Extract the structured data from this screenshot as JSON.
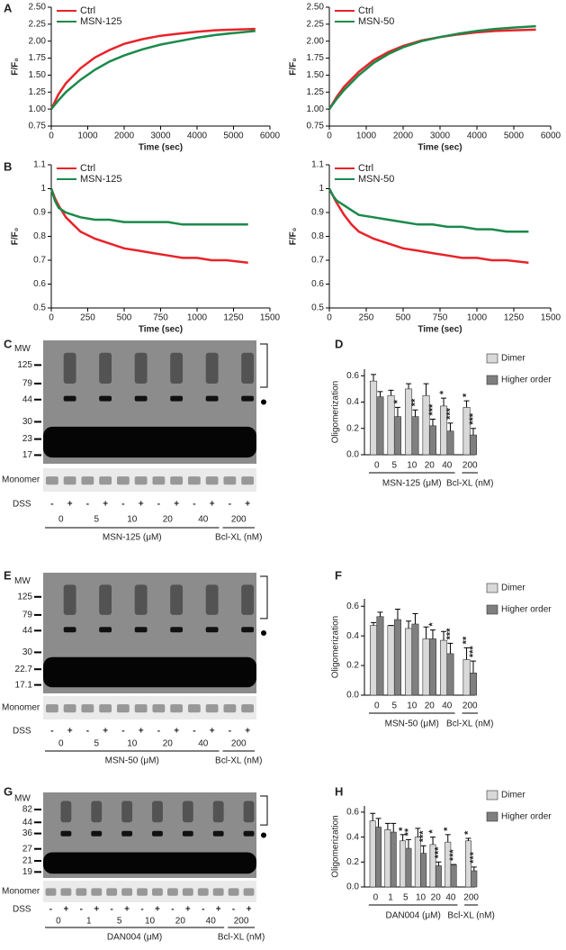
{
  "panel_labels": [
    "A",
    "B",
    "C",
    "D",
    "E",
    "F",
    "G",
    "H"
  ],
  "chart_data": [
    {
      "type": "line",
      "ylabel": "F/F₀",
      "xlabel": "Time (sec)",
      "x": [
        0,
        200,
        400,
        800,
        1200,
        1600,
        2000,
        2500,
        3000,
        3500,
        4000,
        4500,
        5000,
        5600
      ],
      "series": [
        {
          "name": "Ctrl",
          "color": "#e8232a",
          "values": [
            1.0,
            1.22,
            1.38,
            1.6,
            1.76,
            1.87,
            1.96,
            2.03,
            2.08,
            2.11,
            2.14,
            2.16,
            2.17,
            2.18
          ]
        },
        {
          "name": "MSN-125",
          "color": "#1a8a4a",
          "values": [
            1.0,
            1.13,
            1.25,
            1.43,
            1.58,
            1.7,
            1.79,
            1.88,
            1.95,
            2.0,
            2.05,
            2.09,
            2.12,
            2.15
          ]
        }
      ],
      "xlim": [
        0,
        6000
      ],
      "xticks": [
        0,
        1000,
        2000,
        3000,
        4000,
        5000,
        6000
      ],
      "ylim": [
        0.75,
        2.5
      ],
      "yticks": [
        0.75,
        {
          "value": 1,
          "label": "1.00"
        },
        1.25,
        {
          "value": 1.5,
          "label": "1.50"
        },
        1.75,
        {
          "value": 2,
          "label": "2.00"
        },
        2.25,
        {
          "value": 2.5,
          "label": "2.50"
        }
      ]
    },
    {
      "type": "line",
      "ylabel": "F/F₀",
      "xlabel": "Time (sec)",
      "x": [
        0,
        200,
        400,
        800,
        1200,
        1600,
        2000,
        2500,
        3000,
        3500,
        4000,
        4500,
        5000,
        5600
      ],
      "series": [
        {
          "name": "Ctrl",
          "color": "#e8232a",
          "values": [
            1.0,
            1.18,
            1.33,
            1.55,
            1.72,
            1.84,
            1.93,
            2.01,
            2.06,
            2.1,
            2.13,
            2.15,
            2.16,
            2.17
          ]
        },
        {
          "name": "MSN-50",
          "color": "#1a8a4a",
          "values": [
            1.0,
            1.15,
            1.28,
            1.5,
            1.68,
            1.81,
            1.91,
            2.0,
            2.06,
            2.11,
            2.15,
            2.18,
            2.2,
            2.22
          ]
        }
      ],
      "xlim": [
        0,
        6000
      ],
      "xticks": [
        0,
        1000,
        2000,
        3000,
        4000,
        5000,
        6000
      ],
      "ylim": [
        0.75,
        2.5
      ],
      "yticks": [
        0.75,
        {
          "value": 1,
          "label": "1.00"
        },
        1.25,
        {
          "value": 1.5,
          "label": "1.50"
        },
        1.75,
        {
          "value": 2,
          "label": "2.00"
        },
        2.25,
        {
          "value": 2.5,
          "label": "2.50"
        }
      ]
    },
    {
      "type": "line",
      "ylabel": "F/F₀",
      "xlabel": "Time (sec)",
      "x": [
        0,
        25,
        50,
        100,
        150,
        200,
        300,
        400,
        500,
        600,
        700,
        800,
        900,
        1000,
        1100,
        1200,
        1350
      ],
      "series": [
        {
          "name": "Ctrl",
          "color": "#e8232a",
          "values": [
            1.0,
            0.96,
            0.93,
            0.88,
            0.85,
            0.82,
            0.79,
            0.77,
            0.75,
            0.74,
            0.73,
            0.72,
            0.71,
            0.71,
            0.7,
            0.7,
            0.69
          ]
        },
        {
          "name": "MSN-125",
          "color": "#1a8a4a",
          "values": [
            1.0,
            0.95,
            0.92,
            0.9,
            0.89,
            0.88,
            0.87,
            0.87,
            0.86,
            0.86,
            0.86,
            0.86,
            0.85,
            0.85,
            0.85,
            0.85,
            0.85
          ]
        }
      ],
      "xlim": [
        0,
        1500
      ],
      "xticks": [
        0,
        250,
        500,
        750,
        1000,
        1250,
        1500
      ],
      "ylim": [
        0.5,
        1.1
      ],
      "yticks": [
        0.5,
        0.6,
        0.7,
        0.8,
        0.9,
        1,
        1.1
      ]
    },
    {
      "type": "line",
      "ylabel": "F/F₀",
      "xlabel": "Time (sec)",
      "x": [
        0,
        25,
        50,
        100,
        150,
        200,
        300,
        400,
        500,
        600,
        700,
        800,
        900,
        1000,
        1100,
        1200,
        1350
      ],
      "series": [
        {
          "name": "Ctrl",
          "color": "#e8232a",
          "values": [
            1.0,
            0.97,
            0.94,
            0.89,
            0.85,
            0.82,
            0.79,
            0.77,
            0.75,
            0.74,
            0.73,
            0.72,
            0.71,
            0.71,
            0.7,
            0.7,
            0.69
          ]
        },
        {
          "name": "MSN-50",
          "color": "#1a8a4a",
          "values": [
            1.0,
            0.97,
            0.95,
            0.93,
            0.91,
            0.89,
            0.88,
            0.87,
            0.86,
            0.85,
            0.85,
            0.84,
            0.84,
            0.83,
            0.83,
            0.82,
            0.82
          ]
        }
      ],
      "xlim": [
        0,
        1500
      ],
      "xticks": [
        0,
        250,
        500,
        750,
        1000,
        1250,
        1500
      ],
      "ylim": [
        0.5,
        1.1
      ],
      "yticks": [
        0.5,
        0.6,
        0.7,
        0.8,
        0.9,
        1,
        1.1
      ]
    },
    {
      "type": "bar",
      "ylabel": "Oligomerization",
      "categories": [
        "0",
        "5",
        "10",
        "20",
        "40",
        "200"
      ],
      "groups": [
        {
          "label": "MSN-125 (μM)",
          "span": 5
        },
        {
          "label": "Bcl-XL (nM)",
          "span": 1
        }
      ],
      "series": [
        {
          "name": "Dimer",
          "color": "#d9d9d9",
          "values": [
            0.56,
            0.45,
            0.5,
            0.45,
            0.37,
            0.36
          ],
          "errors": [
            0.05,
            0.04,
            0.04,
            0.09,
            0.06,
            0.05
          ],
          "significance": [
            null,
            null,
            null,
            null,
            "*",
            "*"
          ]
        },
        {
          "name": "Higher order",
          "color": "#7f7f7f",
          "values": [
            0.44,
            0.29,
            0.29,
            0.22,
            0.18,
            0.15
          ],
          "errors": [
            0.04,
            0.07,
            0.05,
            0.05,
            0.06,
            0.05
          ],
          "significance": [
            null,
            "*",
            "**",
            "***",
            "***",
            "***"
          ]
        }
      ],
      "ylim": [
        0,
        0.65
      ],
      "yticks": [
        {
          "value": 0,
          "label": "0.0"
        },
        0.2,
        0.4,
        0.6
      ]
    },
    {
      "type": "bar",
      "ylabel": "Oligomerization",
      "categories": [
        "0",
        "5",
        "10",
        "20",
        "40",
        "200"
      ],
      "groups": [
        {
          "label": "MSN-50 (μM)",
          "span": 5
        },
        {
          "label": "Bcl-XL (nM)",
          "span": 1
        }
      ],
      "series": [
        {
          "name": "Dimer",
          "color": "#d9d9d9",
          "values": [
            0.47,
            0.47,
            0.45,
            0.38,
            0.37,
            0.24
          ],
          "errors": [
            0.02,
            0.0,
            0.05,
            0.08,
            0.06,
            0.08
          ],
          "significance": [
            null,
            null,
            null,
            null,
            null,
            "**"
          ]
        },
        {
          "name": "Higher order",
          "color": "#7f7f7f",
          "values": [
            0.53,
            0.51,
            0.48,
            0.38,
            0.28,
            0.15
          ],
          "errors": [
            0.03,
            0.07,
            0.07,
            0.06,
            0.07,
            0.08
          ],
          "significance": [
            null,
            null,
            null,
            "*",
            "***",
            "***"
          ]
        }
      ],
      "ylim": [
        0,
        0.65
      ],
      "yticks": [
        {
          "value": 0,
          "label": "0.0"
        },
        0.2,
        0.4,
        0.6
      ]
    },
    {
      "type": "bar",
      "ylabel": "Oligomerization",
      "categories": [
        "0",
        "1",
        "5",
        "10",
        "20",
        "40",
        "200"
      ],
      "groups": [
        {
          "label": "DAN004 (μM)",
          "span": 6
        },
        {
          "label": "Bcl-XL (nM)",
          "span": 1
        }
      ],
      "series": [
        {
          "name": "Dimer",
          "color": "#d9d9d9",
          "values": [
            0.53,
            0.46,
            0.37,
            0.4,
            0.34,
            0.36,
            0.37
          ],
          "errors": [
            0.06,
            0.05,
            0.05,
            0.07,
            0.06,
            0.06,
            0.02
          ],
          "significance": [
            null,
            null,
            "*",
            null,
            "*",
            "*",
            "*"
          ]
        },
        {
          "name": "Higher order",
          "color": "#7f7f7f",
          "values": [
            0.48,
            0.44,
            0.31,
            0.27,
            0.17,
            0.18,
            0.13
          ],
          "errors": [
            0.07,
            0.07,
            0.07,
            0.06,
            0.03,
            0.0,
            0.03
          ],
          "significance": [
            null,
            null,
            "**",
            "***",
            "***",
            "***",
            "***"
          ]
        }
      ],
      "ylim": [
        0,
        0.65
      ],
      "yticks": [
        {
          "value": 0,
          "label": "0.0"
        },
        0.2,
        0.4,
        0.6
      ]
    }
  ],
  "blots": [
    {
      "mw": [
        "MW",
        "125",
        "79",
        "44",
        "30",
        "23",
        "17"
      ],
      "monomer": "Monomer",
      "dss": "DSS",
      "signs": [
        "-",
        "+",
        "-",
        "+",
        "-",
        "+",
        "-",
        "+",
        "-",
        "+",
        "-",
        "+"
      ],
      "concentrations": [
        "0",
        "5",
        "10",
        "20",
        "40",
        "200"
      ],
      "groups": [
        {
          "label": "MSN-125 (μM)",
          "span": 5
        },
        {
          "label": "Bcl-XL (nM)",
          "span": 1
        }
      ]
    },
    {
      "mw": [
        "MW",
        "125",
        "79",
        "44",
        "30",
        "22.7",
        "17.1"
      ],
      "monomer": "Monomer",
      "dss": "DSS",
      "signs": [
        "-",
        "+",
        "-",
        "+",
        "-",
        "+",
        "-",
        "+",
        "-",
        "+",
        "-",
        "+"
      ],
      "concentrations": [
        "0",
        "5",
        "10",
        "20",
        "40",
        "200"
      ],
      "groups": [
        {
          "label": "MSN-50 (μM)",
          "span": 5
        },
        {
          "label": "Bcl-XL (nM)",
          "span": 1
        }
      ]
    },
    {
      "mw": [
        "MW",
        "82",
        "44",
        "36",
        "27",
        "21",
        "19"
      ],
      "monomer": "Monomer",
      "dss": "DSS",
      "signs": [
        "-",
        "+",
        "-",
        "+",
        "-",
        "+",
        "-",
        "+",
        "-",
        "+",
        "-",
        "+",
        "-",
        "+"
      ],
      "concentrations": [
        "0",
        "1",
        "5",
        "10",
        "20",
        "40",
        "200"
      ],
      "groups": [
        {
          "label": "DAN004 (μM)",
          "span": 6
        },
        {
          "label": "Bcl-XL (nM)",
          "span": 1
        }
      ]
    }
  ]
}
